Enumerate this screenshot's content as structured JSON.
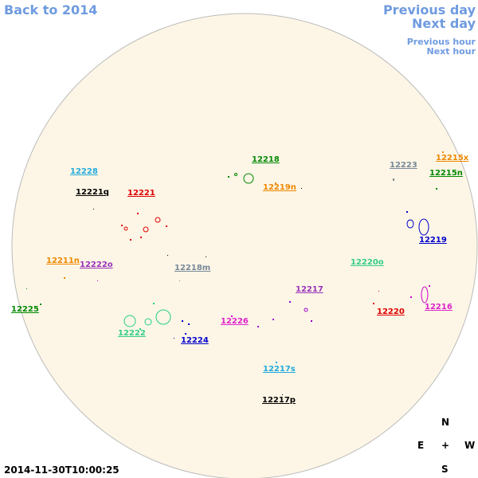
{
  "navigation": {
    "back_year": "Back to 2014",
    "previous_day": "Previous day",
    "next_day": "Next day",
    "previous_hour": "Previous hour",
    "next_hour": "Next hour"
  },
  "regions": [
    "12228",
    "12221q",
    "12221",
    "12218",
    "12219n",
    "12223",
    "12215x",
    "12215n",
    "12219",
    "12211n",
    "12222o",
    "12218m",
    "12220o",
    "12217",
    "12225",
    "12220",
    "12216",
    "12226",
    "12222",
    "12224",
    "12217s",
    "12217p"
  ],
  "compass": {
    "north": "N",
    "east": "E",
    "center": "+",
    "west": "W",
    "south": "S"
  },
  "timestamp": "2014-11-30T10:00:25"
}
